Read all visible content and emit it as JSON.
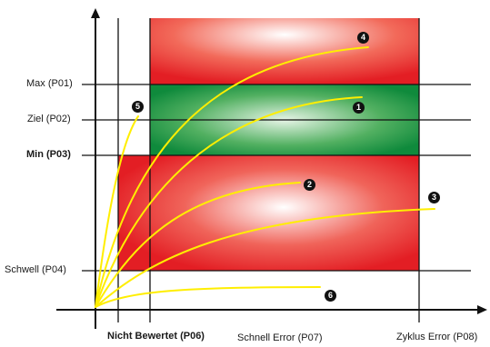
{
  "y_labels": {
    "p01": "Max (P01)",
    "p02": "Ziel (P02)",
    "p03": "Min (P03)",
    "p04": "Schwell (P04)"
  },
  "x_labels": {
    "p06": "Nicht Bewertet (P06)",
    "p07": "Schnell Error (P07)",
    "p08": "Zyklus Error (P08)"
  },
  "markers": [
    "1",
    "2",
    "3",
    "4",
    "5",
    "6"
  ],
  "colors": {
    "error_zone": "#e31e24",
    "target_zone": "#0f8a3c",
    "curve": "#ffee00",
    "line": "#111111"
  }
}
